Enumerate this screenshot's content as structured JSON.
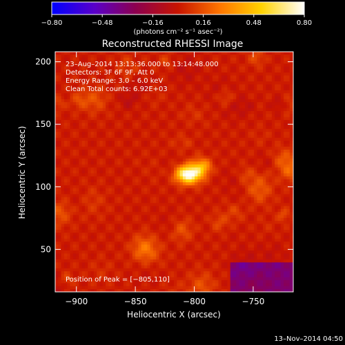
{
  "chart_data": {
    "type": "heatmap",
    "title": "Reconstructed RHESSI Image",
    "xlabel": "Heliocentric X (arcsec)",
    "ylabel": "Heliocentric Y (arcsec)",
    "xlim": [
      -918,
      -716
    ],
    "ylim": [
      16,
      208
    ],
    "xticks": [
      {
        "value": -900,
        "label": "−900"
      },
      {
        "value": -850,
        "label": "−850"
      },
      {
        "value": -800,
        "label": "−800"
      },
      {
        "value": -750,
        "label": "−750"
      }
    ],
    "yticks": [
      {
        "value": 50,
        "label": "50"
      },
      {
        "value": 100,
        "label": "100"
      },
      {
        "value": 150,
        "label": "150"
      },
      {
        "value": 200,
        "label": "200"
      }
    ],
    "peak": {
      "x": -805,
      "y": 110
    },
    "colorbar": {
      "range": [
        -0.8,
        0.8
      ],
      "ticks": [
        {
          "value": -0.8,
          "label": "−0.80"
        },
        {
          "value": -0.48,
          "label": "−0.48"
        },
        {
          "value": -0.16,
          "label": "−0.16"
        },
        {
          "value": 0.16,
          "label": "0.16"
        },
        {
          "value": 0.48,
          "label": "0.48"
        },
        {
          "value": 0.8,
          "label": "0.80"
        }
      ],
      "colors": [
        "#0000ff",
        "#5a00c8",
        "#8c0050",
        "#c81400",
        "#ff7800",
        "#ffd200",
        "#ffffff"
      ],
      "units_line": "(photons cm⁻² s⁻¹ asec⁻²)"
    },
    "annotations": [
      "23–Aug–2014 13:13:36.000 to 13:14:48.000",
      "Detectors: 3F 6F 9F, Att 0",
      "Energy Range: 3.0 – 6.0 keV",
      "Clean     Total counts: 6.92E+03"
    ],
    "peak_label": "Position of Peak = [−805,110]"
  },
  "footer": {
    "datestamp": "13–Nov–2014 04:50"
  }
}
